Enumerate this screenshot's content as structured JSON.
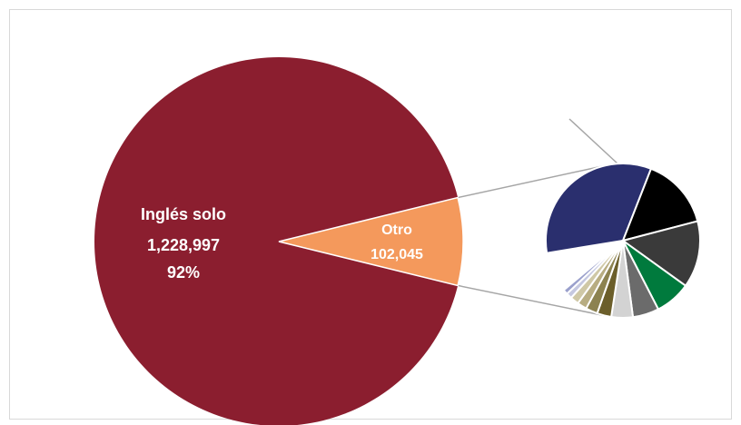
{
  "chart_data": {
    "type": "pie",
    "subtype": "pie-of-pie",
    "main_pie": {
      "slices": [
        {
          "label": "Inglés solo",
          "value_text": "1,228,997",
          "value": 1228997,
          "percent_text": "92%",
          "percent": 92,
          "color": "#8b1e2f"
        },
        {
          "label": "Otro",
          "value_text": "102,045",
          "value": 102045,
          "color": "#f4995c"
        }
      ]
    },
    "secondary_pie": {
      "breakdown_of": "Otro",
      "slices": [
        {
          "share": 0.335,
          "color": "#2a2f6e"
        },
        {
          "share": 0.15,
          "color": "#000000"
        },
        {
          "share": 0.14,
          "color": "#3a3a3a"
        },
        {
          "share": 0.075,
          "color": "#007a3d"
        },
        {
          "share": 0.055,
          "color": "#6b6b6b"
        },
        {
          "share": 0.045,
          "color": "#d3d3d3"
        },
        {
          "share": 0.03,
          "color": "#6b5e2a"
        },
        {
          "share": 0.025,
          "color": "#8c8250"
        },
        {
          "share": 0.02,
          "color": "#b8ad82"
        },
        {
          "share": 0.018,
          "color": "#cfc8a6"
        },
        {
          "share": 0.012,
          "color": "#c5c8e0"
        },
        {
          "share": 0.01,
          "color": "#9aa0cc"
        }
      ]
    },
    "title": "",
    "legend": "none"
  }
}
